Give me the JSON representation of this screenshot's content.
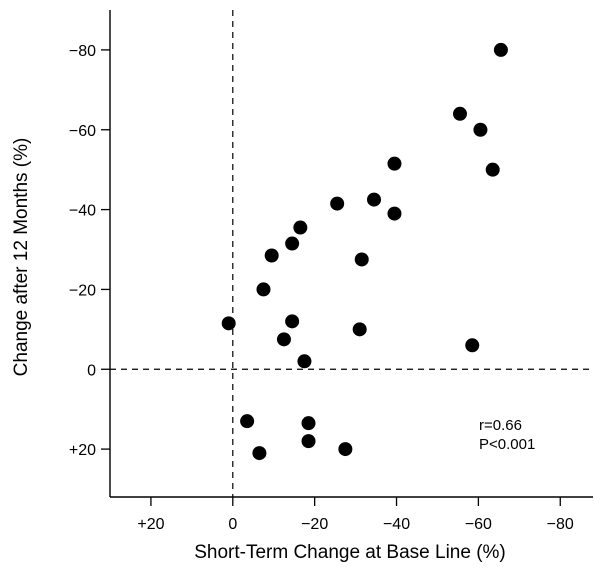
{
  "chart_data": {
    "type": "scatter",
    "xlabel": "Short-Term Change at Base Line (%)",
    "ylabel": "Change after 12 Months (%)",
    "x_reversed": true,
    "y_reversed": true,
    "xlim": [
      30,
      -88
    ],
    "ylim": [
      32,
      -90
    ],
    "x_ticks": [
      20,
      0,
      -20,
      -40,
      -60,
      -80
    ],
    "x_tick_labels": [
      "+20",
      "0",
      "−20",
      "−40",
      "−60",
      "−80"
    ],
    "y_ticks": [
      20,
      0,
      -20,
      -40,
      -60,
      -80
    ],
    "y_tick_labels": [
      "+20",
      "0",
      "−20",
      "−40",
      "−60",
      "−80"
    ],
    "reference_lines": {
      "x": 0,
      "y": 0,
      "style": "dashed"
    },
    "grid": false,
    "marker_color": "#000000",
    "annotations": [
      "r=0.66",
      "P<0.001"
    ],
    "points": [
      {
        "x": -65.5,
        "y": -80
      },
      {
        "x": -55.5,
        "y": -64
      },
      {
        "x": -60.5,
        "y": -60
      },
      {
        "x": -63.5,
        "y": -50
      },
      {
        "x": -39.5,
        "y": -51.5
      },
      {
        "x": -34.5,
        "y": -42.5
      },
      {
        "x": -25.5,
        "y": -41.5
      },
      {
        "x": -39.5,
        "y": -39
      },
      {
        "x": -16.5,
        "y": -35.5
      },
      {
        "x": -14.5,
        "y": -31.5
      },
      {
        "x": -9.5,
        "y": -28.5
      },
      {
        "x": -31.5,
        "y": -27.5
      },
      {
        "x": -7.5,
        "y": -20
      },
      {
        "x": 1,
        "y": -11.5
      },
      {
        "x": -14.5,
        "y": -12
      },
      {
        "x": -31,
        "y": -10
      },
      {
        "x": -12.5,
        "y": -7.5
      },
      {
        "x": -58.5,
        "y": -6
      },
      {
        "x": -17.5,
        "y": -2
      },
      {
        "x": -3.5,
        "y": 13
      },
      {
        "x": -18.5,
        "y": 13.5
      },
      {
        "x": -6.5,
        "y": 21
      },
      {
        "x": -18.5,
        "y": 18
      },
      {
        "x": -27.5,
        "y": 20
      }
    ]
  }
}
